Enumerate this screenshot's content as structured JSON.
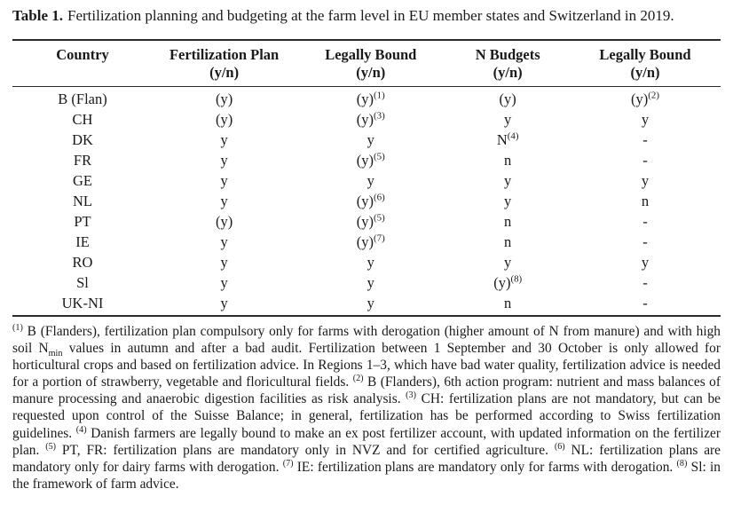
{
  "colors": {
    "background": "#ffffff",
    "text": "#1a1a1a",
    "rule": "#2b2b2b"
  },
  "caption": {
    "label": "Table 1.",
    "text": "Fertilization planning and budgeting at the farm level in EU member states and Switzerland in 2019."
  },
  "table": {
    "columns": [
      {
        "id": "country",
        "title": "Country",
        "sub": ""
      },
      {
        "id": "fertilization-plan",
        "title": "Fertilization Plan",
        "sub": "(y/n)"
      },
      {
        "id": "legally-bound-plan",
        "title": "Legally Bound",
        "sub": "(y/n)"
      },
      {
        "id": "n-budgets",
        "title": "N Budgets",
        "sub": "(y/n)"
      },
      {
        "id": "legally-bound-budgets",
        "title": "Legally Bound",
        "sub": "(y/n)"
      }
    ],
    "rows": [
      {
        "cells": [
          {
            "v": "B (Flan)"
          },
          {
            "v": "(y)"
          },
          {
            "v": "(y)",
            "sup": "(1)"
          },
          {
            "v": "(y)"
          },
          {
            "v": "(y)",
            "sup": "(2)"
          }
        ]
      },
      {
        "cells": [
          {
            "v": "CH"
          },
          {
            "v": "(y)"
          },
          {
            "v": "(y)",
            "sup": "(3)"
          },
          {
            "v": "y"
          },
          {
            "v": "y"
          }
        ]
      },
      {
        "cells": [
          {
            "v": "DK"
          },
          {
            "v": "y"
          },
          {
            "v": "y"
          },
          {
            "v": "N",
            "sup": "(4)"
          },
          {
            "v": "-"
          }
        ]
      },
      {
        "cells": [
          {
            "v": "FR"
          },
          {
            "v": "y"
          },
          {
            "v": "(y)",
            "sup": "(5)"
          },
          {
            "v": "n"
          },
          {
            "v": "-"
          }
        ]
      },
      {
        "cells": [
          {
            "v": "GE"
          },
          {
            "v": "y"
          },
          {
            "v": "y"
          },
          {
            "v": "y"
          },
          {
            "v": "y"
          }
        ]
      },
      {
        "cells": [
          {
            "v": "NL"
          },
          {
            "v": "y"
          },
          {
            "v": "(y)",
            "sup": "(6)"
          },
          {
            "v": "y"
          },
          {
            "v": "n"
          }
        ]
      },
      {
        "cells": [
          {
            "v": "PT"
          },
          {
            "v": "(y)"
          },
          {
            "v": "(y)",
            "sup": "(5)"
          },
          {
            "v": "n"
          },
          {
            "v": "-"
          }
        ]
      },
      {
        "cells": [
          {
            "v": "IE"
          },
          {
            "v": "y"
          },
          {
            "v": "(y)",
            "sup": "(7)"
          },
          {
            "v": "n"
          },
          {
            "v": "-"
          }
        ]
      },
      {
        "cells": [
          {
            "v": "RO"
          },
          {
            "v": "y"
          },
          {
            "v": "y"
          },
          {
            "v": "y"
          },
          {
            "v": "y"
          }
        ]
      },
      {
        "cells": [
          {
            "v": "Sl"
          },
          {
            "v": "y"
          },
          {
            "v": "y"
          },
          {
            "v": "(y)",
            "sup": "(8)"
          },
          {
            "v": "-"
          }
        ]
      },
      {
        "cells": [
          {
            "v": "UK-NI"
          },
          {
            "v": "y"
          },
          {
            "v": "y"
          },
          {
            "v": "n"
          },
          {
            "v": "-"
          }
        ]
      }
    ]
  },
  "footnotes": [
    {
      "t": "sup",
      "v": "(1)"
    },
    {
      "t": "txt",
      "v": " B (Flanders), fertilization plan compulsory only for farms with derogation (higher amount of N from manure) and with high soil N"
    },
    {
      "t": "sub",
      "v": "min"
    },
    {
      "t": "txt",
      "v": " values in autumn and after a bad audit. Fertilization between 1 September and 30 October is only allowed for horticultural crops and based on fertilization advice. In Regions 1–3, which have bad water quality, fertilization advice is needed for a portion of strawberry, vegetable and floricultural fields. "
    },
    {
      "t": "sup",
      "v": "(2)"
    },
    {
      "t": "txt",
      "v": " B (Flanders), 6th action program: nutrient and mass balances of manure processing and anaerobic digestion facilities as risk analysis. "
    },
    {
      "t": "sup",
      "v": "(3)"
    },
    {
      "t": "txt",
      "v": " CH: fertilization plans are not mandatory, but can be requested upon control of the Suisse Balance; in general, fertilization has be performed according to Swiss fertilization guidelines. "
    },
    {
      "t": "sup",
      "v": "(4)"
    },
    {
      "t": "txt",
      "v": " Danish farmers are legally bound to make an ex post fertilizer account, with updated information on the fertilizer plan. "
    },
    {
      "t": "sup",
      "v": "(5)"
    },
    {
      "t": "txt",
      "v": " PT, FR: fertilization plans are mandatory only in NVZ and for certified agriculture. "
    },
    {
      "t": "sup",
      "v": "(6)"
    },
    {
      "t": "txt",
      "v": " NL: fertilization plans are mandatory only for dairy farms with derogation. "
    },
    {
      "t": "sup",
      "v": "(7)"
    },
    {
      "t": "txt",
      "v": " IE: fertilization plans are mandatory only for farms with derogation. "
    },
    {
      "t": "sup",
      "v": "(8)"
    },
    {
      "t": "txt",
      "v": " Sl: in the framework of farm advice."
    }
  ]
}
